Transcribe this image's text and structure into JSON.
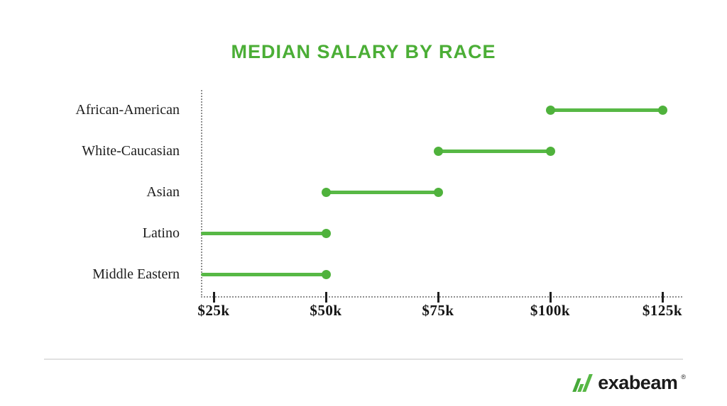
{
  "title": "MEDIAN SALARY BY RACE",
  "colors": {
    "title_green": "#4BAE36",
    "line_green": "#57B845",
    "dot_green": "#4FB23C",
    "label_text": "#1d1d1d",
    "axis_dotted": "#8f8f8f",
    "tick_dark": "#1f1f1f",
    "divider_gray": "#E1E1E1",
    "logo_text": "#1b1b1b"
  },
  "chart_data": {
    "type": "dumbbell-range",
    "title": "MEDIAN SALARY BY RACE",
    "xlabel": "",
    "ylabel": "",
    "grid": false,
    "legend": false,
    "axis_style": "dotted",
    "xlim_k": [
      22,
      130
    ],
    "x_ticks": [
      "$25k",
      "$50k",
      "$75k",
      "$100k",
      "$125k"
    ],
    "x_tick_values_k": [
      25,
      50,
      75,
      100,
      125
    ],
    "categories": [
      "African-American",
      "White-Caucasian",
      "Asian",
      "Latino",
      "Middle Eastern"
    ],
    "series": [
      {
        "label": "African-American",
        "start_k": 100,
        "end_k": 125,
        "start_dot": true,
        "end_dot": true
      },
      {
        "label": "White-Caucasian",
        "start_k": 75,
        "end_k": 100,
        "start_dot": true,
        "end_dot": true
      },
      {
        "label": "Asian",
        "start_k": 50,
        "end_k": 75,
        "start_dot": true,
        "end_dot": true
      },
      {
        "label": "Latino",
        "start_k": null,
        "end_k": 50,
        "start_dot": false,
        "end_dot": true,
        "note": "line starts at y-axis"
      },
      {
        "label": "Middle Eastern",
        "start_k": null,
        "end_k": 50,
        "start_dot": false,
        "end_dot": true,
        "note": "line starts at y-axis"
      }
    ]
  },
  "footer": {
    "brand": "exabeam",
    "registered": "®"
  }
}
